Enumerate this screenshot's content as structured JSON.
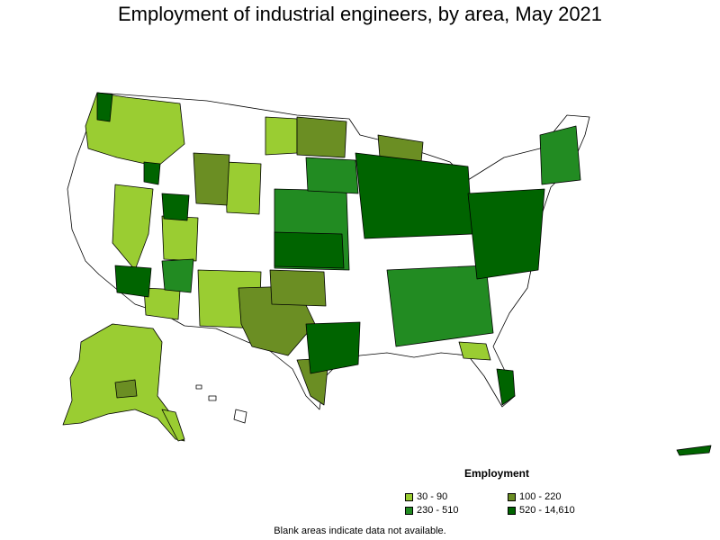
{
  "title": "Employment of industrial engineers, by area, May 2021",
  "legend": {
    "title": "Employment",
    "items": [
      {
        "label": "30 - 90",
        "color": "#9acd32"
      },
      {
        "label": "100 - 220",
        "color": "#6b8e23"
      },
      {
        "label": "230 - 510",
        "color": "#228b22"
      },
      {
        "label": "520 - 14,610",
        "color": "#006400"
      }
    ]
  },
  "note": "Blank areas indicate data not available."
}
